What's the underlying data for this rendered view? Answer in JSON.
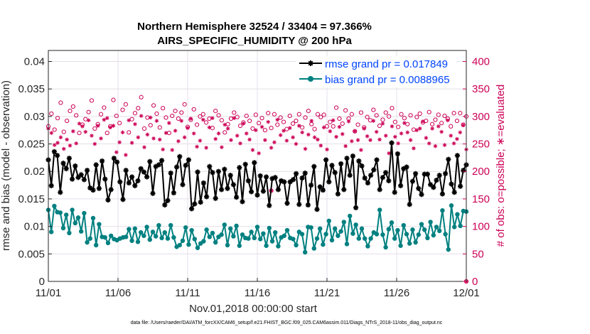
{
  "chart_data": {
    "type": "line",
    "title": "Northern Hemisphere 32524 / 33404 = 97.366%",
    "subtitle": "AIRS_SPECIFIC_HUMIDITY @ 200 hPa",
    "xlabel": "Nov.01,2018 00:00:00 start",
    "ylabel_left": "rmse and bias (model - observation)",
    "ylabel_right": "# of obs: o=possible; ∗=evaluated",
    "x_ticks": [
      "11/01",
      "11/06",
      "11/11",
      "11/16",
      "11/21",
      "11/26",
      "12/01"
    ],
    "ylim_left": [
      0,
      0.042
    ],
    "y_ticks_left": [
      "0",
      "0.005",
      "0.01",
      "0.015",
      "0.02",
      "0.025",
      "0.03",
      "0.035",
      "0.04"
    ],
    "ylim_right": [
      0,
      420
    ],
    "y_ticks_right": [
      "0",
      "50",
      "100",
      "150",
      "200",
      "250",
      "300",
      "350",
      "400"
    ],
    "xlim": [
      0,
      120
    ],
    "grid": true,
    "legend": {
      "placement": "top-right",
      "entries": [
        "rmse grand pr = 0.017849",
        "bias grand pr = 0.0088965"
      ]
    },
    "colors": {
      "rmse": "#000000",
      "bias": "#008080",
      "obs": "#cc0055",
      "legend_text": "#0044ff"
    },
    "series": [
      {
        "name": "rmse",
        "axis": "left",
        "values": [
          0.0221,
          0.0174,
          0.0236,
          0.0229,
          0.0162,
          0.0215,
          0.0205,
          0.0224,
          0.0186,
          0.021,
          0.0189,
          0.0194,
          0.0185,
          0.0202,
          0.017,
          0.0166,
          0.0212,
          0.0169,
          0.0219,
          0.0186,
          0.0148,
          0.0167,
          0.0224,
          0.0217,
          0.0181,
          0.0149,
          0.0202,
          0.0179,
          0.019,
          0.0174,
          0.0183,
          0.0205,
          0.0199,
          0.019,
          0.0218,
          0.016,
          0.0209,
          0.0212,
          0.022,
          0.0139,
          0.0147,
          0.0197,
          0.0161,
          0.0208,
          0.0227,
          0.0176,
          0.0211,
          0.0221,
          0.0132,
          0.0141,
          0.0199,
          0.0144,
          0.0179,
          0.0154,
          0.0209,
          0.0198,
          0.0151,
          0.02,
          0.0167,
          0.0204,
          0.0169,
          0.0193,
          0.0176,
          0.0153,
          0.0207,
          0.0145,
          0.0213,
          0.0183,
          0.0163,
          0.0216,
          0.0157,
          0.0192,
          0.0164,
          0.019,
          0.0138,
          0.0187,
          0.0189,
          0.0167,
          0.0183,
          0.0181,
          0.0142,
          0.0181,
          0.0185,
          0.0196,
          0.014,
          0.0188,
          0.0197,
          0.0139,
          0.0175,
          0.0209,
          0.0131,
          0.0172,
          0.0166,
          0.0221,
          0.0181,
          0.0211,
          0.0198,
          0.0159,
          0.0214,
          0.0167,
          0.0224,
          0.0193,
          0.0228,
          0.0134,
          0.0219,
          0.021,
          0.0188,
          0.0179,
          0.0193,
          0.0203,
          0.0221,
          0.0167,
          0.0189,
          0.0198,
          0.0183,
          0.0252,
          0.0162,
          0.0232,
          0.0174,
          0.0205,
          0.0208,
          0.014,
          0.0182,
          0.0196,
          0.0169,
          0.0158,
          0.0195,
          0.0195,
          0.0176,
          0.0171,
          0.0184,
          0.0193,
          0.0159,
          0.0196,
          0.0222,
          0.0177,
          0.0162,
          0.0229,
          0.0173,
          0.0202,
          0.0212
        ]
      },
      {
        "name": "bias",
        "axis": "left",
        "values": [
          0.013,
          0.009,
          0.0137,
          0.0126,
          0.0125,
          0.0097,
          0.0121,
          0.0088,
          0.013,
          0.0106,
          0.0116,
          0.0091,
          0.0124,
          0.0071,
          0.0078,
          0.0115,
          0.0066,
          0.0104,
          0.0081,
          0.008,
          0.007,
          0.0083,
          0.0077,
          0.0075,
          0.0078,
          0.008,
          0.0081,
          0.0095,
          0.0074,
          0.0096,
          0.0072,
          0.0089,
          0.0083,
          0.0099,
          0.0076,
          0.009,
          0.0082,
          0.0102,
          0.0079,
          0.0089,
          0.0078,
          0.0102,
          0.008,
          0.0063,
          0.0066,
          0.0074,
          0.0098,
          0.0067,
          0.0093,
          0.0077,
          0.0061,
          0.0069,
          0.0073,
          0.0094,
          0.0081,
          0.0088,
          0.0071,
          0.0081,
          0.0085,
          0.0103,
          0.0066,
          0.0096,
          0.0082,
          0.0101,
          0.0065,
          0.0085,
          0.0079,
          0.0078,
          0.009,
          0.0079,
          0.0099,
          0.0077,
          0.0087,
          0.0065,
          0.0097,
          0.0073,
          0.0089,
          0.0064,
          0.008,
          0.0083,
          0.0093,
          0.0079,
          0.0077,
          0.0066,
          0.009,
          0.0086,
          0.0053,
          0.0099,
          0.0098,
          0.006,
          0.0078,
          0.0096,
          0.0067,
          0.0086,
          0.011,
          0.0075,
          0.0096,
          0.0083,
          0.0091,
          0.0108,
          0.0068,
          0.0119,
          0.0087,
          0.0103,
          0.0078,
          0.0096,
          0.0078,
          0.0064,
          0.0078,
          0.0089,
          0.0086,
          0.013,
          0.0085,
          0.0062,
          0.0095,
          0.0107,
          0.0078,
          0.0093,
          0.0065,
          0.0102,
          0.0086,
          0.0069,
          0.0094,
          0.0071,
          0.0085,
          0.0104,
          0.0094,
          0.0079,
          0.0108,
          0.0084,
          0.0099,
          0.0092,
          0.0129,
          0.0086,
          0.0058,
          0.0138,
          0.0099,
          0.0122,
          0.0101,
          0.0128,
          0.0127
        ]
      },
      {
        "name": "obs_possible",
        "axis": "right",
        "values": [
          282,
          305,
          276,
          297,
          325,
          272,
          292,
          310,
          318,
          302,
          270,
          285,
          295,
          308,
          329,
          278,
          286,
          304,
          316,
          270,
          282,
          330,
          301,
          288,
          312,
          322,
          271,
          295,
          306,
          315,
          335,
          278,
          298,
          284,
          320,
          305,
          280,
          315,
          298,
          270,
          301,
          310,
          296,
          307,
          322,
          281,
          294,
          313,
          285,
          300,
          304,
          289,
          296,
          279,
          310,
          302,
          293,
          271,
          286,
          296,
          307,
          299,
          283,
          289,
          301,
          292,
          278,
          303,
          288,
          297,
          275,
          306,
          279,
          304,
          285,
          298,
          290,
          277,
          301,
          287,
          292,
          304,
          280,
          298,
          310,
          286,
          277,
          304,
          299,
          303,
          282,
          290,
          282,
          316,
          296,
          287,
          311,
          296,
          304,
          273,
          285,
          307,
          280,
          299,
          293,
          312,
          302,
          283,
          294,
          307,
          300,
          315,
          290,
          281,
          304,
          297,
          286,
          302,
          276,
          299,
          305,
          289,
          292,
          308,
          286,
          294,
          303,
          288,
          301,
          296,
          282,
          306,
          292,
          306,
          285,
          300
        ]
      },
      {
        "name": "obs_evaluated",
        "axis": "right",
        "values": [
          278,
          270,
          248,
          252,
          262,
          241,
          258,
          247,
          273,
          251,
          287,
          282,
          272,
          293,
          265,
          250,
          283,
          260,
          294,
          297,
          280,
          283,
          235,
          253,
          271,
          230,
          293,
          252,
          286,
          262,
          301,
          244,
          267,
          298,
          260,
          292,
          258,
          240,
          270,
          288,
          239,
          274,
          255,
          292,
          262,
          279,
          296,
          269,
          245,
          256,
          294,
          243,
          280,
          297,
          259,
          269,
          244,
          285,
          278,
          257,
          297,
          265,
          251,
          287,
          269,
          258,
          239,
          275,
          233,
          281,
          257,
          290,
          243,
          253,
          294,
          266,
          274,
          256,
          279,
          262,
          250,
          283,
          271,
          241,
          267,
          292,
          262,
          258,
          247,
          280,
          240,
          273,
          293,
          263,
          281,
          268,
          246,
          291,
          255,
          273,
          257,
          239,
          278,
          264,
          257,
          292,
          272,
          258,
          287,
          265,
          233,
          282,
          263,
          251,
          269,
          288,
          271,
          257,
          242,
          275,
          278,
          291,
          261,
          251,
          278,
          246,
          282,
          272,
          248,
          293,
          265,
          251,
          259,
          271,
          284,
          240
        ]
      },
      {
        "name": "obs_outliers",
        "axis": "right",
        "values": [
          165,
          0
        ]
      }
    ]
  },
  "footer": "data file: /Users/raeder/DAI/ATM_forcXX/CAM6_setup/f.e21.FHIST_BGC.f09_025.CAM6assim.011/Diags_NTrS_2018-11/obs_diag_output.nc"
}
